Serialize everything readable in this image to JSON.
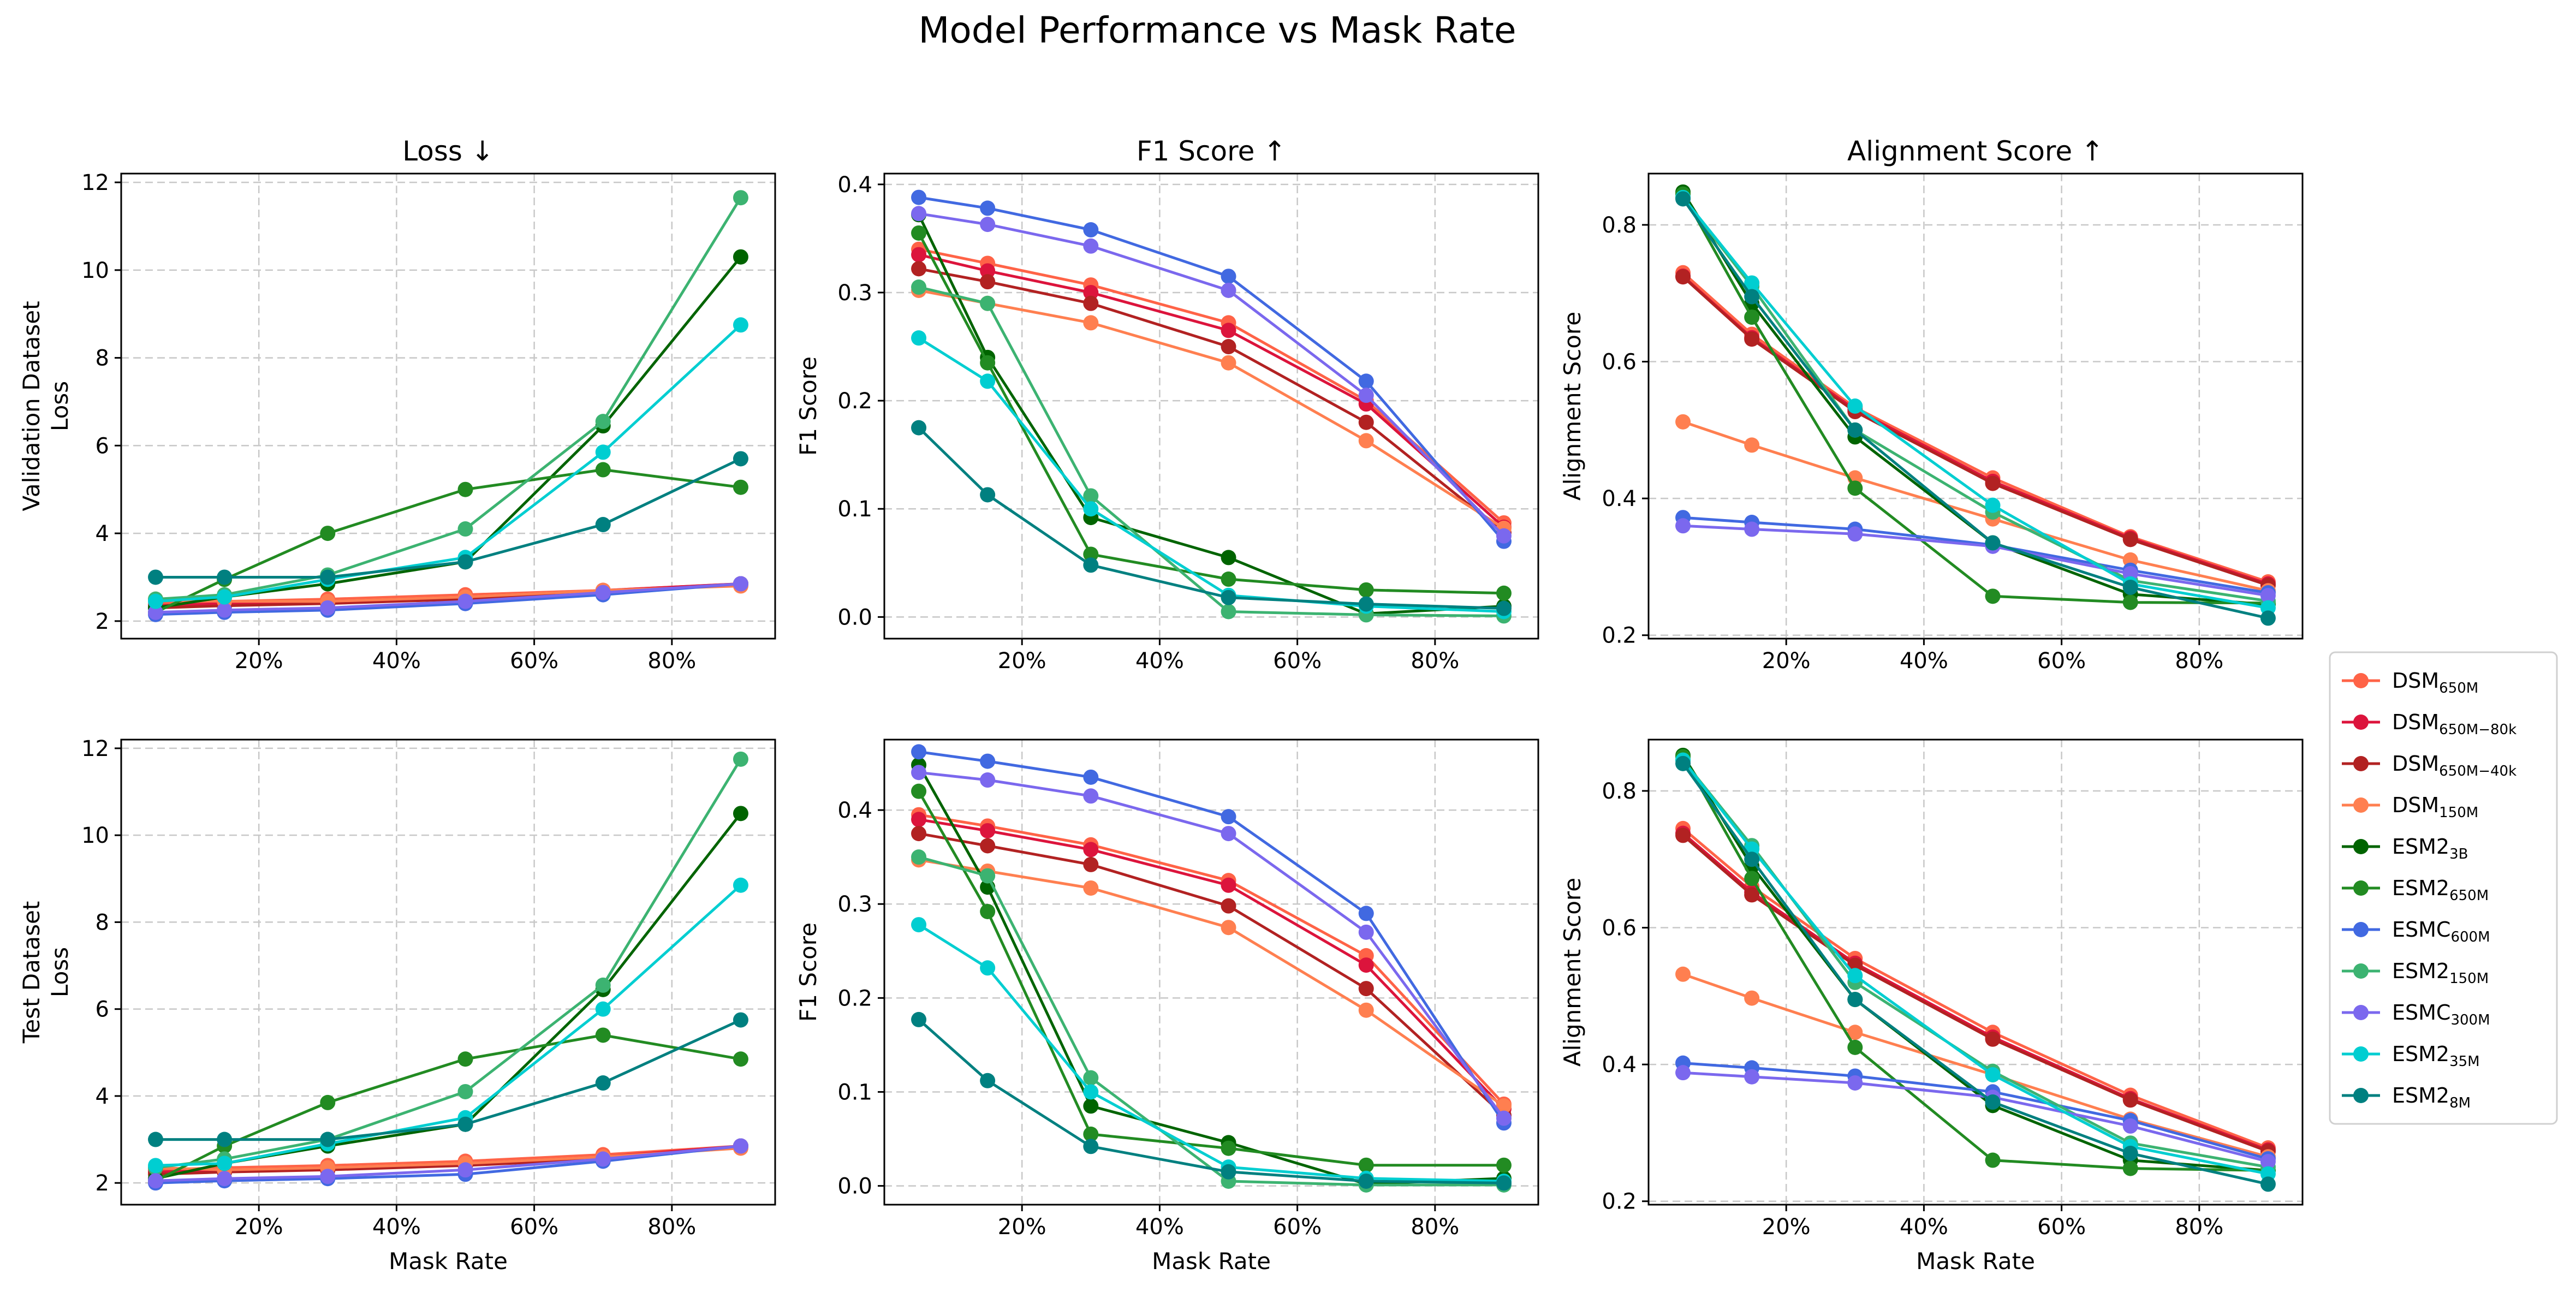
{
  "figure_title": "Model Performance vs Mask Rate",
  "chart_data": {
    "type": "line",
    "x": [
      0.05,
      0.15,
      0.3,
      0.5,
      0.7,
      0.9
    ],
    "x_tick_labels": [
      "20%",
      "40%",
      "60%",
      "80%"
    ],
    "x_ticks": [
      0.2,
      0.4,
      0.6,
      0.8
    ],
    "xlabel": "Mask Rate",
    "xlim": [
      0.0,
      0.95
    ],
    "grid": true,
    "legend_placement": "right",
    "series_meta": [
      {
        "base": "DSM",
        "sub": "650M",
        "color": "#ff6347"
      },
      {
        "base": "DSM",
        "sub": "650M−80k",
        "color": "#dc143c"
      },
      {
        "base": "DSM",
        "sub": "650M−40k",
        "color": "#b22222"
      },
      {
        "base": "DSM",
        "sub": "150M",
        "color": "#ff7f50"
      },
      {
        "base": "ESM2",
        "sub": "3B",
        "color": "#006400"
      },
      {
        "base": "ESM2",
        "sub": "650M",
        "color": "#228b22"
      },
      {
        "base": "ESMC",
        "sub": "600M",
        "color": "#4169e1"
      },
      {
        "base": "ESM2",
        "sub": "150M",
        "color": "#3cb371"
      },
      {
        "base": "ESMC",
        "sub": "300M",
        "color": "#7b68ee"
      },
      {
        "base": "ESM2",
        "sub": "35M",
        "color": "#00ced1"
      },
      {
        "base": "ESM2",
        "sub": "8M",
        "color": "#008080"
      }
    ],
    "panels": [
      {
        "id": "val-loss",
        "title": "Loss ↓",
        "ylabel": [
          "Validation Dataset",
          "Loss"
        ],
        "xlabel": "",
        "ylim": [
          1.6,
          12.2
        ],
        "yticks": [
          2,
          4,
          6,
          8,
          10,
          12
        ],
        "ytick_labels": [
          "2",
          "4",
          "6",
          "8",
          "10",
          "12"
        ],
        "series": [
          [
            2.4,
            2.45,
            2.5,
            2.6,
            2.7,
            2.85
          ],
          [
            2.35,
            2.4,
            2.45,
            2.55,
            2.7,
            2.85
          ],
          [
            2.3,
            2.35,
            2.4,
            2.5,
            2.65,
            2.85
          ],
          [
            2.5,
            2.45,
            2.45,
            2.55,
            2.7,
            2.8
          ],
          [
            2.3,
            2.55,
            2.85,
            3.35,
            6.45,
            10.3
          ],
          [
            2.2,
            2.95,
            4.0,
            5.0,
            5.45,
            5.05
          ],
          [
            2.15,
            2.2,
            2.25,
            2.4,
            2.6,
            2.85
          ],
          [
            2.5,
            2.6,
            3.05,
            4.1,
            6.55,
            11.65
          ],
          [
            2.2,
            2.25,
            2.3,
            2.45,
            2.65,
            2.85
          ],
          [
            2.45,
            2.55,
            2.95,
            3.45,
            5.85,
            8.75
          ],
          [
            3.0,
            3.0,
            3.0,
            3.35,
            4.2,
            5.7
          ]
        ]
      },
      {
        "id": "val-f1",
        "title": "F1 Score ↑",
        "ylabel": [
          "F1 Score"
        ],
        "xlabel": "",
        "ylim": [
          -0.02,
          0.41
        ],
        "yticks": [
          0.0,
          0.1,
          0.2,
          0.3,
          0.4
        ],
        "ytick_labels": [
          "0.0",
          "0.1",
          "0.2",
          "0.3",
          "0.4"
        ],
        "series": [
          [
            0.34,
            0.327,
            0.307,
            0.272,
            0.2,
            0.087
          ],
          [
            0.335,
            0.32,
            0.3,
            0.265,
            0.197,
            0.083
          ],
          [
            0.322,
            0.31,
            0.29,
            0.25,
            0.18,
            0.078
          ],
          [
            0.302,
            0.29,
            0.272,
            0.235,
            0.163,
            0.082
          ],
          [
            0.372,
            0.24,
            0.092,
            0.055,
            0.003,
            0.01
          ],
          [
            0.355,
            0.235,
            0.058,
            0.035,
            0.025,
            0.022
          ],
          [
            0.388,
            0.378,
            0.358,
            0.315,
            0.218,
            0.07
          ],
          [
            0.305,
            0.29,
            0.112,
            0.005,
            0.002,
            0.001
          ],
          [
            0.373,
            0.363,
            0.343,
            0.302,
            0.205,
            0.075
          ],
          [
            0.258,
            0.218,
            0.1,
            0.02,
            0.01,
            0.005
          ],
          [
            0.175,
            0.113,
            0.048,
            0.018,
            0.012,
            0.008
          ]
        ]
      },
      {
        "id": "val-align",
        "title": "Alignment Score ↑",
        "ylabel": [
          "Alignment Score"
        ],
        "xlabel": "",
        "ylim": [
          0.195,
          0.875
        ],
        "yticks": [
          0.2,
          0.4,
          0.6,
          0.8
        ],
        "ytick_labels": [
          "0.2",
          "0.4",
          "0.6",
          "0.8"
        ],
        "series": [
          [
            0.73,
            0.64,
            0.533,
            0.43,
            0.344,
            0.278
          ],
          [
            0.725,
            0.635,
            0.53,
            0.425,
            0.342,
            0.275
          ],
          [
            0.724,
            0.633,
            0.527,
            0.422,
            0.34,
            0.273
          ],
          [
            0.512,
            0.478,
            0.43,
            0.37,
            0.31,
            0.265
          ],
          [
            0.848,
            0.685,
            0.49,
            0.335,
            0.26,
            0.245
          ],
          [
            0.845,
            0.665,
            0.415,
            0.257,
            0.248,
            0.247
          ],
          [
            0.372,
            0.365,
            0.355,
            0.332,
            0.295,
            0.262
          ],
          [
            0.84,
            0.71,
            0.5,
            0.38,
            0.28,
            0.25
          ],
          [
            0.36,
            0.355,
            0.348,
            0.33,
            0.29,
            0.258
          ],
          [
            0.84,
            0.715,
            0.535,
            0.39,
            0.275,
            0.24
          ],
          [
            0.838,
            0.695,
            0.5,
            0.335,
            0.27,
            0.225
          ]
        ]
      },
      {
        "id": "test-loss",
        "title": "",
        "ylabel": [
          "Test Dataset",
          "Loss"
        ],
        "xlabel": "Mask Rate",
        "ylim": [
          1.5,
          12.2
        ],
        "yticks": [
          2,
          4,
          6,
          8,
          10,
          12
        ],
        "ytick_labels": [
          "2",
          "4",
          "6",
          "8",
          "10",
          "12"
        ],
        "series": [
          [
            2.3,
            2.35,
            2.4,
            2.5,
            2.65,
            2.85
          ],
          [
            2.25,
            2.3,
            2.35,
            2.45,
            2.6,
            2.85
          ],
          [
            2.2,
            2.25,
            2.3,
            2.4,
            2.55,
            2.85
          ],
          [
            2.35,
            2.3,
            2.35,
            2.45,
            2.6,
            2.8
          ],
          [
            2.1,
            2.45,
            2.85,
            3.35,
            6.45,
            10.5
          ],
          [
            2.05,
            2.85,
            3.85,
            4.85,
            5.4,
            4.85
          ],
          [
            2.0,
            2.05,
            2.1,
            2.2,
            2.5,
            2.85
          ],
          [
            2.35,
            2.55,
            3.0,
            4.1,
            6.55,
            11.75
          ],
          [
            2.05,
            2.1,
            2.15,
            2.3,
            2.55,
            2.85
          ],
          [
            2.4,
            2.45,
            2.9,
            3.5,
            6.0,
            8.85
          ],
          [
            3.0,
            3.0,
            3.0,
            3.35,
            4.3,
            5.75
          ]
        ]
      },
      {
        "id": "test-f1",
        "title": "",
        "ylabel": [
          "F1 Score"
        ],
        "xlabel": "Mask Rate",
        "ylim": [
          -0.02,
          0.475
        ],
        "yticks": [
          0.0,
          0.1,
          0.2,
          0.3,
          0.4
        ],
        "ytick_labels": [
          "0.0",
          "0.1",
          "0.2",
          "0.3",
          "0.4"
        ],
        "series": [
          [
            0.395,
            0.383,
            0.363,
            0.325,
            0.245,
            0.087
          ],
          [
            0.39,
            0.378,
            0.358,
            0.32,
            0.235,
            0.082
          ],
          [
            0.375,
            0.362,
            0.342,
            0.298,
            0.21,
            0.075
          ],
          [
            0.347,
            0.335,
            0.317,
            0.275,
            0.187,
            0.085
          ],
          [
            0.448,
            0.318,
            0.085,
            0.046,
            0.002,
            0.008
          ],
          [
            0.42,
            0.292,
            0.055,
            0.04,
            0.022,
            0.022
          ],
          [
            0.462,
            0.452,
            0.435,
            0.393,
            0.29,
            0.067
          ],
          [
            0.35,
            0.33,
            0.115,
            0.005,
            0.001,
            0.001
          ],
          [
            0.44,
            0.432,
            0.415,
            0.375,
            0.27,
            0.072
          ],
          [
            0.278,
            0.232,
            0.1,
            0.02,
            0.008,
            0.005
          ],
          [
            0.177,
            0.112,
            0.042,
            0.015,
            0.005,
            0.003
          ]
        ]
      },
      {
        "id": "test-align",
        "title": "",
        "ylabel": [
          "Alignment Score"
        ],
        "xlabel": "Mask Rate",
        "ylim": [
          0.195,
          0.875
        ],
        "yticks": [
          0.2,
          0.4,
          0.6,
          0.8
        ],
        "ytick_labels": [
          "0.2",
          "0.4",
          "0.6",
          "0.8"
        ],
        "series": [
          [
            0.745,
            0.66,
            0.555,
            0.447,
            0.355,
            0.278
          ],
          [
            0.738,
            0.652,
            0.548,
            0.44,
            0.35,
            0.275
          ],
          [
            0.735,
            0.648,
            0.545,
            0.437,
            0.348,
            0.273
          ],
          [
            0.532,
            0.497,
            0.447,
            0.385,
            0.32,
            0.265
          ],
          [
            0.852,
            0.69,
            0.495,
            0.34,
            0.26,
            0.245
          ],
          [
            0.85,
            0.672,
            0.425,
            0.26,
            0.248,
            0.245
          ],
          [
            0.402,
            0.395,
            0.383,
            0.36,
            0.318,
            0.262
          ],
          [
            0.845,
            0.72,
            0.52,
            0.39,
            0.285,
            0.25
          ],
          [
            0.388,
            0.382,
            0.373,
            0.352,
            0.31,
            0.258
          ],
          [
            0.845,
            0.715,
            0.53,
            0.385,
            0.28,
            0.24
          ],
          [
            0.84,
            0.7,
            0.495,
            0.345,
            0.27,
            0.225
          ]
        ]
      }
    ]
  }
}
